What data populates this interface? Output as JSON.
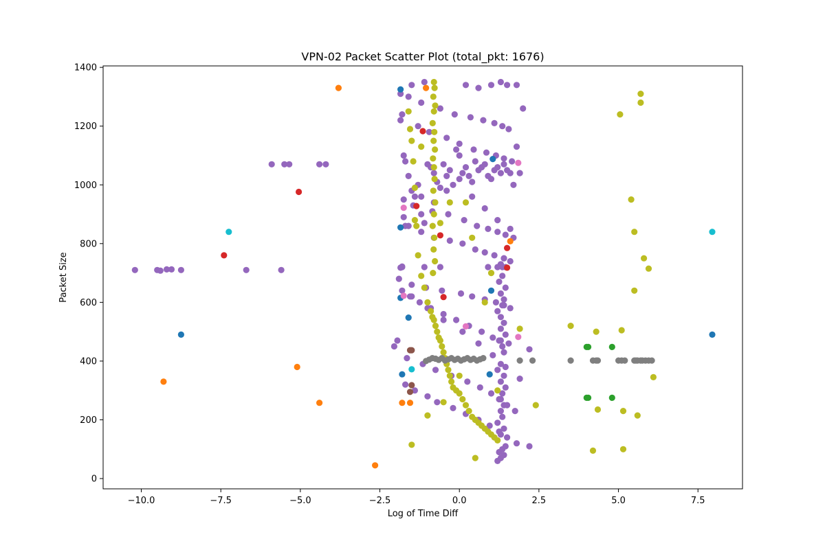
{
  "chart_data": {
    "type": "scatter",
    "title": "VPN-02 Packet Scatter Plot (total_pkt: 1676)",
    "xlabel": "Log of Time Diff",
    "ylabel": "Packet Size",
    "xlim": [
      -11.2,
      8.9
    ],
    "ylim": [
      -35,
      1405
    ],
    "xticks": [
      -10.0,
      -7.5,
      -5.0,
      -2.5,
      0.0,
      2.5,
      5.0,
      7.5
    ],
    "xtick_labels": [
      "−10.0",
      "−7.5",
      "−5.0",
      "−2.5",
      "0.0",
      "2.5",
      "5.0",
      "7.5"
    ],
    "yticks": [
      0,
      200,
      400,
      600,
      800,
      1000,
      1200,
      1400
    ],
    "ytick_labels": [
      "0",
      "200",
      "400",
      "600",
      "800",
      "1000",
      "1200",
      "1400"
    ],
    "grid": false,
    "legend": "none",
    "colors": {
      "blue": "#1f77b4",
      "orange": "#ff7f0e",
      "green": "#2ca02c",
      "red": "#d62728",
      "purple": "#9467bd",
      "brown": "#8c564b",
      "pink": "#e377c2",
      "gray": "#7f7f7f",
      "olive": "#bcbd22",
      "cyan": "#17becf"
    },
    "series": [
      {
        "color": "#9467bd",
        "x": [
          -10.2,
          -9.5,
          -9.4,
          -9.2,
          -9.05,
          -8.75,
          -6.7,
          -5.6,
          -5.9,
          -5.5,
          -5.35,
          -4.4,
          -4.2,
          -2.05,
          -1.95,
          -1.85,
          -1.8,
          -1.75,
          -1.7,
          -1.6,
          -1.5,
          -1.4,
          -1.3,
          -1.2,
          -1.1,
          -1.0,
          -0.9,
          -0.8,
          -0.7,
          -0.6,
          -0.5,
          -0.4,
          -0.3,
          -0.2,
          -0.1,
          0.0,
          0.1,
          0.2,
          0.3,
          0.4,
          0.5,
          0.6,
          0.7,
          0.8,
          0.9,
          1.0,
          1.1,
          1.2,
          1.3,
          1.4,
          1.5,
          1.6,
          1.7,
          1.8,
          1.9,
          2.2,
          -1.8,
          -1.85,
          -1.8,
          -1.1,
          -0.6,
          0.9,
          1.2,
          1.35,
          1.45,
          -1.5,
          -1.1,
          0.2,
          0.6,
          1.0,
          1.3,
          1.5,
          -1.75,
          -1.6,
          -1.2,
          -0.8,
          -0.3,
          0.1,
          0.5,
          0.8,
          1.1,
          1.4,
          1.6,
          -1.8,
          -1.55,
          -1.25,
          -0.9,
          -0.5,
          -0.1,
          0.3,
          0.7,
          1.05,
          1.3,
          1.55,
          -1.7,
          -1.4,
          -1.0,
          -0.7,
          -0.2,
          0.2,
          0.6,
          0.95,
          1.25,
          1.5,
          1.8,
          -1.85,
          -1.3,
          -0.95,
          -0.4,
          0.0,
          0.45,
          0.85,
          1.15,
          1.4,
          1.65,
          -1.6,
          -1.2,
          -0.6,
          -0.15,
          0.35,
          0.75,
          1.1,
          1.35,
          1.55,
          -1.75,
          -1.45,
          -0.85,
          -0.35,
          0.15,
          0.55,
          0.9,
          1.2,
          1.45,
          1.7,
          -1.9,
          -1.5,
          -1.05,
          -0.55,
          0.05,
          0.4,
          0.8,
          1.15,
          1.4,
          1.6,
          -1.65,
          -1.15,
          -0.75,
          -0.25,
          0.25,
          0.65,
          1.0,
          1.3,
          1.5,
          1.75,
          1.2,
          1.3,
          1.4,
          1.25,
          1.35,
          1.45,
          1.3,
          1.4,
          1.2,
          1.35,
          1.3,
          1.4,
          1.25,
          1.35,
          1.45,
          1.3,
          1.4,
          1.2,
          1.3,
          1.4,
          1.35,
          1.25,
          1.45,
          1.3,
          1.4,
          1.3,
          1.2,
          1.35,
          1.4,
          1.3,
          1.45,
          1.25,
          1.35,
          1.3,
          1.4,
          2.2,
          2.0,
          1.8,
          -1.7,
          -1.2,
          -0.8,
          -0.4,
          0.0,
          0.4,
          0.8,
          1.2,
          1.6,
          -1.5,
          -1.0,
          -0.5,
          0.1,
          0.6,
          1.05,
          1.45,
          1.9
        ],
        "y": [
          710,
          710,
          708,
          712,
          712,
          710,
          710,
          710,
          1070,
          1070,
          1070,
          1070,
          1070,
          450,
          470,
          1310,
          1240,
          1100,
          1080,
          1030,
          980,
          960,
          1000,
          960,
          870,
          1070,
          1060,
          1040,
          1010,
          990,
          1070,
          1030,
          1050,
          1000,
          1120,
          1100,
          1040,
          1060,
          1030,
          1010,
          1080,
          1050,
          1060,
          1070,
          1030,
          1020,
          1050,
          1060,
          1040,
          1070,
          1050,
          1040,
          1000,
          1130,
          1040,
          440,
          720,
          718,
          722,
          720,
          720,
          720,
          720,
          720,
          720,
          1340,
          1350,
          1340,
          1330,
          1340,
          1350,
          1340,
          890,
          860,
          840,
          820,
          810,
          800,
          780,
          770,
          760,
          750,
          740,
          640,
          620,
          600,
          580,
          560,
          540,
          520,
          500,
          480,
          470,
          460,
          320,
          300,
          280,
          260,
          240,
          220,
          200,
          180,
          160,
          140,
          120,
          1220,
          1200,
          1180,
          1160,
          1140,
          1120,
          1110,
          1100,
          1090,
          1080,
          1300,
          1280,
          1260,
          1240,
          1230,
          1220,
          1210,
          1200,
          1190,
          950,
          930,
          910,
          900,
          880,
          860,
          850,
          840,
          830,
          820,
          680,
          660,
          650,
          640,
          630,
          620,
          610,
          600,
          590,
          580,
          410,
          390,
          370,
          350,
          330,
          310,
          290,
          270,
          250,
          230,
          60,
          70,
          80,
          90,
          100,
          110,
          150,
          170,
          190,
          210,
          230,
          250,
          270,
          290,
          310,
          330,
          350,
          370,
          390,
          430,
          450,
          470,
          490,
          510,
          530,
          550,
          570,
          590,
          610,
          630,
          650,
          670,
          690,
          730,
          750,
          110,
          1260,
          1340,
          860,
          900,
          940,
          980,
          1020,
          960,
          920,
          880,
          850,
          620,
          580,
          540,
          500,
          460,
          420,
          380,
          340
        ]
      },
      {
        "color": "#bcbd22",
        "x": [
          -1.6,
          -1.55,
          -1.5,
          -1.45,
          -1.4,
          -1.35,
          -1.3,
          -1.2,
          -1.1,
          -1.0,
          -0.9,
          -0.85,
          -0.8,
          -0.75,
          -0.7,
          -0.65,
          -0.6,
          -0.55,
          -0.5,
          -0.45,
          -0.4,
          -0.35,
          -0.3,
          -0.25,
          -0.2,
          -0.1,
          0.0,
          0.1,
          0.2,
          0.3,
          0.4,
          0.5,
          0.6,
          0.7,
          0.8,
          0.9,
          1.0,
          1.1,
          1.2,
          -0.8,
          -0.78,
          -0.82,
          -0.76,
          -0.8,
          -0.84,
          -0.79,
          -0.81,
          -0.77,
          -0.83,
          -0.8,
          -0.78,
          -0.82,
          -0.76,
          -0.8,
          -0.84,
          -0.79,
          -0.81,
          -0.77,
          -0.83,
          1.9,
          2.4,
          3.5,
          4.2,
          4.35,
          4.3,
          5.05,
          5.1,
          5.15,
          5.4,
          5.5,
          5.5,
          5.6,
          5.7,
          5.7,
          5.8,
          5.95,
          6.1,
          5.15,
          -1.5,
          -1.0,
          -0.5,
          0.0,
          0.5,
          1.0,
          -1.2,
          -0.6,
          0.2,
          0.8,
          -1.4,
          -0.3,
          0.4,
          1.2
        ],
        "y": [
          1250,
          1190,
          1150,
          1080,
          990,
          860,
          760,
          690,
          650,
          600,
          570,
          550,
          540,
          520,
          500,
          480,
          470,
          450,
          430,
          410,
          390,
          370,
          350,
          330,
          310,
          300,
          290,
          270,
          250,
          230,
          210,
          200,
          190,
          180,
          170,
          160,
          150,
          140,
          130,
          1350,
          1330,
          1300,
          1270,
          1250,
          1210,
          1180,
          1150,
          1120,
          1090,
          1060,
          1020,
          980,
          940,
          900,
          860,
          820,
          780,
          740,
          700,
          510,
          250,
          520,
          95,
          235,
          500,
          1240,
          505,
          230,
          950,
          840,
          640,
          215,
          1310,
          1280,
          750,
          715,
          345,
          100,
          115,
          215,
          260,
          350,
          70,
          700,
          1130,
          870,
          940,
          600,
          880,
          940,
          820,
          300
        ]
      },
      {
        "color": "#7f7f7f",
        "x": [
          -1.05,
          -0.95,
          -0.85,
          -0.75,
          -0.65,
          -0.55,
          -0.45,
          -0.35,
          -0.25,
          -0.15,
          -0.05,
          0.05,
          0.15,
          0.25,
          0.35,
          0.45,
          0.55,
          0.65,
          0.75,
          1.9,
          2.3,
          3.5,
          4.2,
          4.3,
          4.35,
          5.0,
          5.1,
          5.2,
          5.5,
          5.55,
          5.6,
          5.7,
          5.75,
          5.85,
          5.95,
          6.05
        ],
        "y": [
          400,
          405,
          410,
          408,
          404,
          410,
          402,
          406,
          410,
          404,
          408,
          402,
          406,
          410,
          404,
          408,
          402,
          406,
          410,
          402,
          402,
          402,
          402,
          402,
          402,
          402,
          402,
          402,
          402,
          402,
          402,
          402,
          402,
          402,
          402,
          402
        ]
      },
      {
        "color": "#1f77b4",
        "x": [
          -8.75,
          -1.85,
          -1.85,
          -1.85,
          -1.8,
          -1.6,
          0.95,
          1.0,
          1.05,
          7.95
        ],
        "y": [
          490,
          1325,
          855,
          615,
          355,
          548,
          355,
          640,
          1088,
          490
        ]
      },
      {
        "color": "#ff7f0e",
        "x": [
          -9.3,
          -5.1,
          -4.4,
          -3.8,
          -2.65,
          -1.05,
          -1.8,
          -1.55,
          1.6
        ],
        "y": [
          330,
          380,
          258,
          1330,
          45,
          1330,
          258,
          258,
          808
        ]
      },
      {
        "color": "#2ca02c",
        "x": [
          4.0,
          4.05,
          4.0,
          4.05,
          4.8,
          4.8
        ],
        "y": [
          448,
          448,
          275,
          275,
          448,
          275
        ]
      },
      {
        "color": "#d62728",
        "x": [
          -7.4,
          -5.05,
          -1.35,
          -1.15,
          -0.6,
          -0.5,
          1.5,
          1.5
        ],
        "y": [
          760,
          976,
          928,
          1183,
          828,
          618,
          785,
          718
        ]
      },
      {
        "color": "#8c564b",
        "x": [
          -1.55,
          -1.5,
          -1.5,
          -1.55
        ],
        "y": [
          437,
          437,
          318,
          295
        ]
      },
      {
        "color": "#e377c2",
        "x": [
          -1.75,
          -1.75,
          0.2,
          1.85,
          1.85
        ],
        "y": [
          922,
          622,
          518,
          1075,
          482
        ]
      },
      {
        "color": "#17becf",
        "x": [
          -7.25,
          -1.5,
          7.95
        ],
        "y": [
          840,
          372,
          840
        ]
      }
    ]
  }
}
